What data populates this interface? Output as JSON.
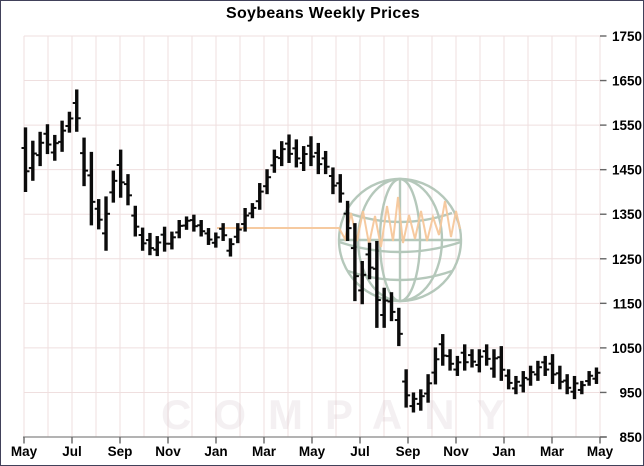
{
  "title": "Soybeans Weekly Prices",
  "chart_data": {
    "type": "bar",
    "subtype": "high-low price bars (weekly)",
    "title": "Soybeans Weekly Prices",
    "xlabel": "",
    "ylabel": "",
    "ylim": [
      850,
      1750
    ],
    "y_tick_labels": [
      "1750",
      "1650",
      "1550",
      "1450",
      "1350",
      "1250",
      "1150",
      "1050",
      "950",
      "850"
    ],
    "y_tick_values": [
      1750,
      1650,
      1550,
      1450,
      1350,
      1250,
      1150,
      1050,
      950,
      850
    ],
    "x_tick_labels": [
      "May",
      "Jul",
      "Sep",
      "Nov",
      "Jan",
      "Mar",
      "May",
      "Jul",
      "Sep",
      "Nov",
      "Jan",
      "Mar",
      "May"
    ],
    "months_spanned": 24,
    "grid": "on",
    "legend_position": "none",
    "bar_format": [
      "high",
      "low"
    ],
    "bars": [
      [
        1545,
        1400
      ],
      [
        1515,
        1425
      ],
      [
        1535,
        1458
      ],
      [
        1552,
        1485
      ],
      [
        1528,
        1470
      ],
      [
        1560,
        1490
      ],
      [
        1580,
        1533
      ],
      [
        1630,
        1535
      ],
      [
        1522,
        1413
      ],
      [
        1490,
        1325
      ],
      [
        1384,
        1316
      ],
      [
        1390,
        1268
      ],
      [
        1448,
        1376
      ],
      [
        1495,
        1387
      ],
      [
        1440,
        1370
      ],
      [
        1369,
        1300
      ],
      [
        1320,
        1268
      ],
      [
        1308,
        1258
      ],
      [
        1301,
        1256
      ],
      [
        1322,
        1266
      ],
      [
        1311,
        1271
      ],
      [
        1337,
        1296
      ],
      [
        1345,
        1315
      ],
      [
        1349,
        1311
      ],
      [
        1337,
        1300
      ],
      [
        1319,
        1281
      ],
      [
        1309,
        1275
      ],
      [
        1330,
        1290
      ],
      [
        1296,
        1255
      ],
      [
        1330,
        1285
      ],
      [
        1364,
        1311
      ],
      [
        1375,
        1341
      ],
      [
        1420,
        1360
      ],
      [
        1451,
        1395
      ],
      [
        1495,
        1443
      ],
      [
        1514,
        1458
      ],
      [
        1529,
        1465
      ],
      [
        1518,
        1455
      ],
      [
        1503,
        1447
      ],
      [
        1525,
        1458
      ],
      [
        1510,
        1440
      ],
      [
        1492,
        1440
      ],
      [
        1455,
        1395
      ],
      [
        1440,
        1376
      ],
      [
        1380,
        1290
      ],
      [
        1330,
        1155
      ],
      [
        1245,
        1148
      ],
      [
        1286,
        1204
      ],
      [
        1290,
        1095
      ],
      [
        1185,
        1095
      ],
      [
        1175,
        1110
      ],
      [
        1140,
        1054
      ],
      [
        1002,
        916
      ],
      [
        950,
        905
      ],
      [
        957,
        909
      ],
      [
        991,
        927
      ],
      [
        1051,
        968
      ],
      [
        1081,
        1010
      ],
      [
        1047,
        999
      ],
      [
        1032,
        987
      ],
      [
        1058,
        999
      ],
      [
        1047,
        1006
      ],
      [
        1047,
        995
      ],
      [
        1058,
        1010
      ],
      [
        1047,
        983
      ],
      [
        1054,
        976
      ],
      [
        1002,
        957
      ],
      [
        987,
        946
      ],
      [
        998,
        950
      ],
      [
        1010,
        965
      ],
      [
        1021,
        976
      ],
      [
        1032,
        987
      ],
      [
        1036,
        969
      ],
      [
        1010,
        957
      ],
      [
        991,
        946
      ],
      [
        987,
        935
      ],
      [
        976,
        946
      ],
      [
        998,
        965
      ],
      [
        1006,
        969
      ]
    ]
  },
  "watermark": {
    "company_text": "COMPANY",
    "logo": "globe-with-price-line-icon",
    "globe_color": "#a9bfb0",
    "line_color": "#f6c79b",
    "text_color": "#cfbfc8"
  },
  "colors": {
    "bar": "#0b0b0b",
    "grid": "#efdfdf",
    "axis_line": "#9a9a9a",
    "tick": "#666666",
    "label": "#000000",
    "background": "#ffffff"
  }
}
